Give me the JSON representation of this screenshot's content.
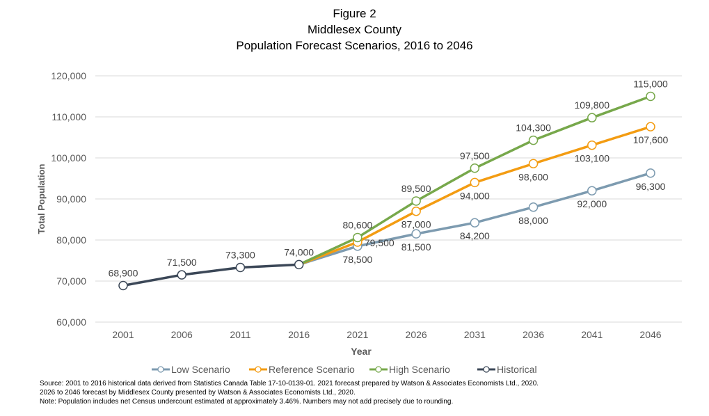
{
  "chart_data": {
    "type": "line",
    "title_lines": [
      "Figure 2",
      "Middlesex County",
      "Population Forecast Scenarios, 2016 to 2046"
    ],
    "xlabel": "Year",
    "ylabel": "Total Population",
    "ylim": [
      60000,
      120000
    ],
    "yticks": [
      "60,000",
      "70,000",
      "80,000",
      "90,000",
      "100,000",
      "110,000",
      "120,000"
    ],
    "ytick_values": [
      60000,
      70000,
      80000,
      90000,
      100000,
      110000,
      120000
    ],
    "categories": [
      "2001",
      "2006",
      "2011",
      "2016",
      "2021",
      "2026",
      "2031",
      "2036",
      "2041",
      "2046"
    ],
    "grid": "horizontal",
    "legend_position": "bottom",
    "series": [
      {
        "name": "Low Scenario",
        "color": "#7d9bb0",
        "values": [
          null,
          null,
          null,
          74000,
          78500,
          81500,
          84200,
          88000,
          92000,
          96300
        ],
        "labels": [
          "",
          "",
          "",
          "",
          "78,500",
          "81,500",
          "84,200",
          "88,000",
          "92,000",
          "96,300"
        ]
      },
      {
        "name": "Reference Scenario",
        "color": "#f39c12",
        "values": [
          null,
          null,
          null,
          74000,
          79500,
          87000,
          94000,
          98600,
          103100,
          107600
        ],
        "labels": [
          "",
          "",
          "",
          "",
          "79,500",
          "87,000",
          "94,000",
          "98,600",
          "103,100",
          "107,600"
        ]
      },
      {
        "name": "High Scenario",
        "color": "#77a84b",
        "values": [
          null,
          null,
          null,
          74000,
          80600,
          89500,
          97500,
          104300,
          109800,
          115000
        ],
        "labels": [
          "",
          "",
          "",
          "",
          "80,600",
          "89,500",
          "97,500",
          "104,300",
          "109,800",
          "115,000"
        ]
      },
      {
        "name": "Historical",
        "color": "#3b4757",
        "values": [
          68900,
          71500,
          73300,
          74000,
          null,
          null,
          null,
          null,
          null,
          null
        ],
        "labels": [
          "68,900",
          "71,500",
          "73,300",
          "74,000",
          "",
          "",
          "",
          "",
          "",
          ""
        ]
      }
    ]
  },
  "footnotes": [
    "Source: 2001 to 2016 historical data derived from Statistics Canada Table 17-10-0139-01. 2021 forecast prepared by Watson & Associates Economists Ltd., 2020.",
    "2026 to 2046 forecast by Middlesex County presented by Watson & Associates Economists Ltd., 2020.",
    "Note: Population includes net Census undercount estimated at approximately 3.46%. Numbers may not add precisely due to rounding."
  ]
}
